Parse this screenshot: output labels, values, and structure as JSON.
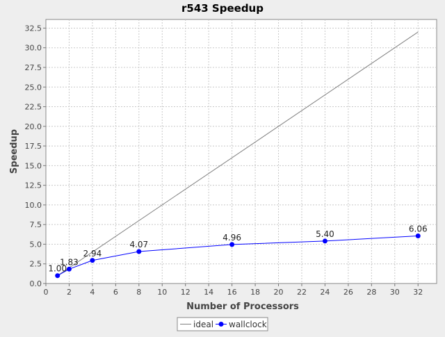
{
  "chart_data": {
    "type": "line",
    "title": "r543 Speedup",
    "xlabel": "Number of Processors",
    "ylabel": "Speedup",
    "xlim": [
      0,
      33.6
    ],
    "ylim": [
      0,
      33.6
    ],
    "x_ticks": [
      0,
      2,
      4,
      6,
      8,
      10,
      12,
      14,
      16,
      18,
      20,
      22,
      24,
      26,
      28,
      30,
      32
    ],
    "y_ticks": [
      "0.0",
      "2.5",
      "5.0",
      "7.5",
      "10.0",
      "12.5",
      "15.0",
      "17.5",
      "20.0",
      "22.5",
      "25.0",
      "27.5",
      "30.0",
      "32.5"
    ],
    "grid": true,
    "legend_position": "bottom-center",
    "series": [
      {
        "name": "ideal",
        "color": "#808080",
        "markers": false,
        "x": [
          1,
          32
        ],
        "y": [
          1,
          32
        ]
      },
      {
        "name": "wallclock",
        "color": "#0000ff",
        "markers": true,
        "x": [
          1,
          2,
          4,
          8,
          16,
          24,
          32
        ],
        "y": [
          1.0,
          1.83,
          2.94,
          4.07,
          4.96,
          5.4,
          6.06
        ],
        "labels": [
          "1.00",
          "1.83",
          "2.94",
          "4.07",
          "4.96",
          "5.40",
          "6.06"
        ]
      }
    ]
  }
}
